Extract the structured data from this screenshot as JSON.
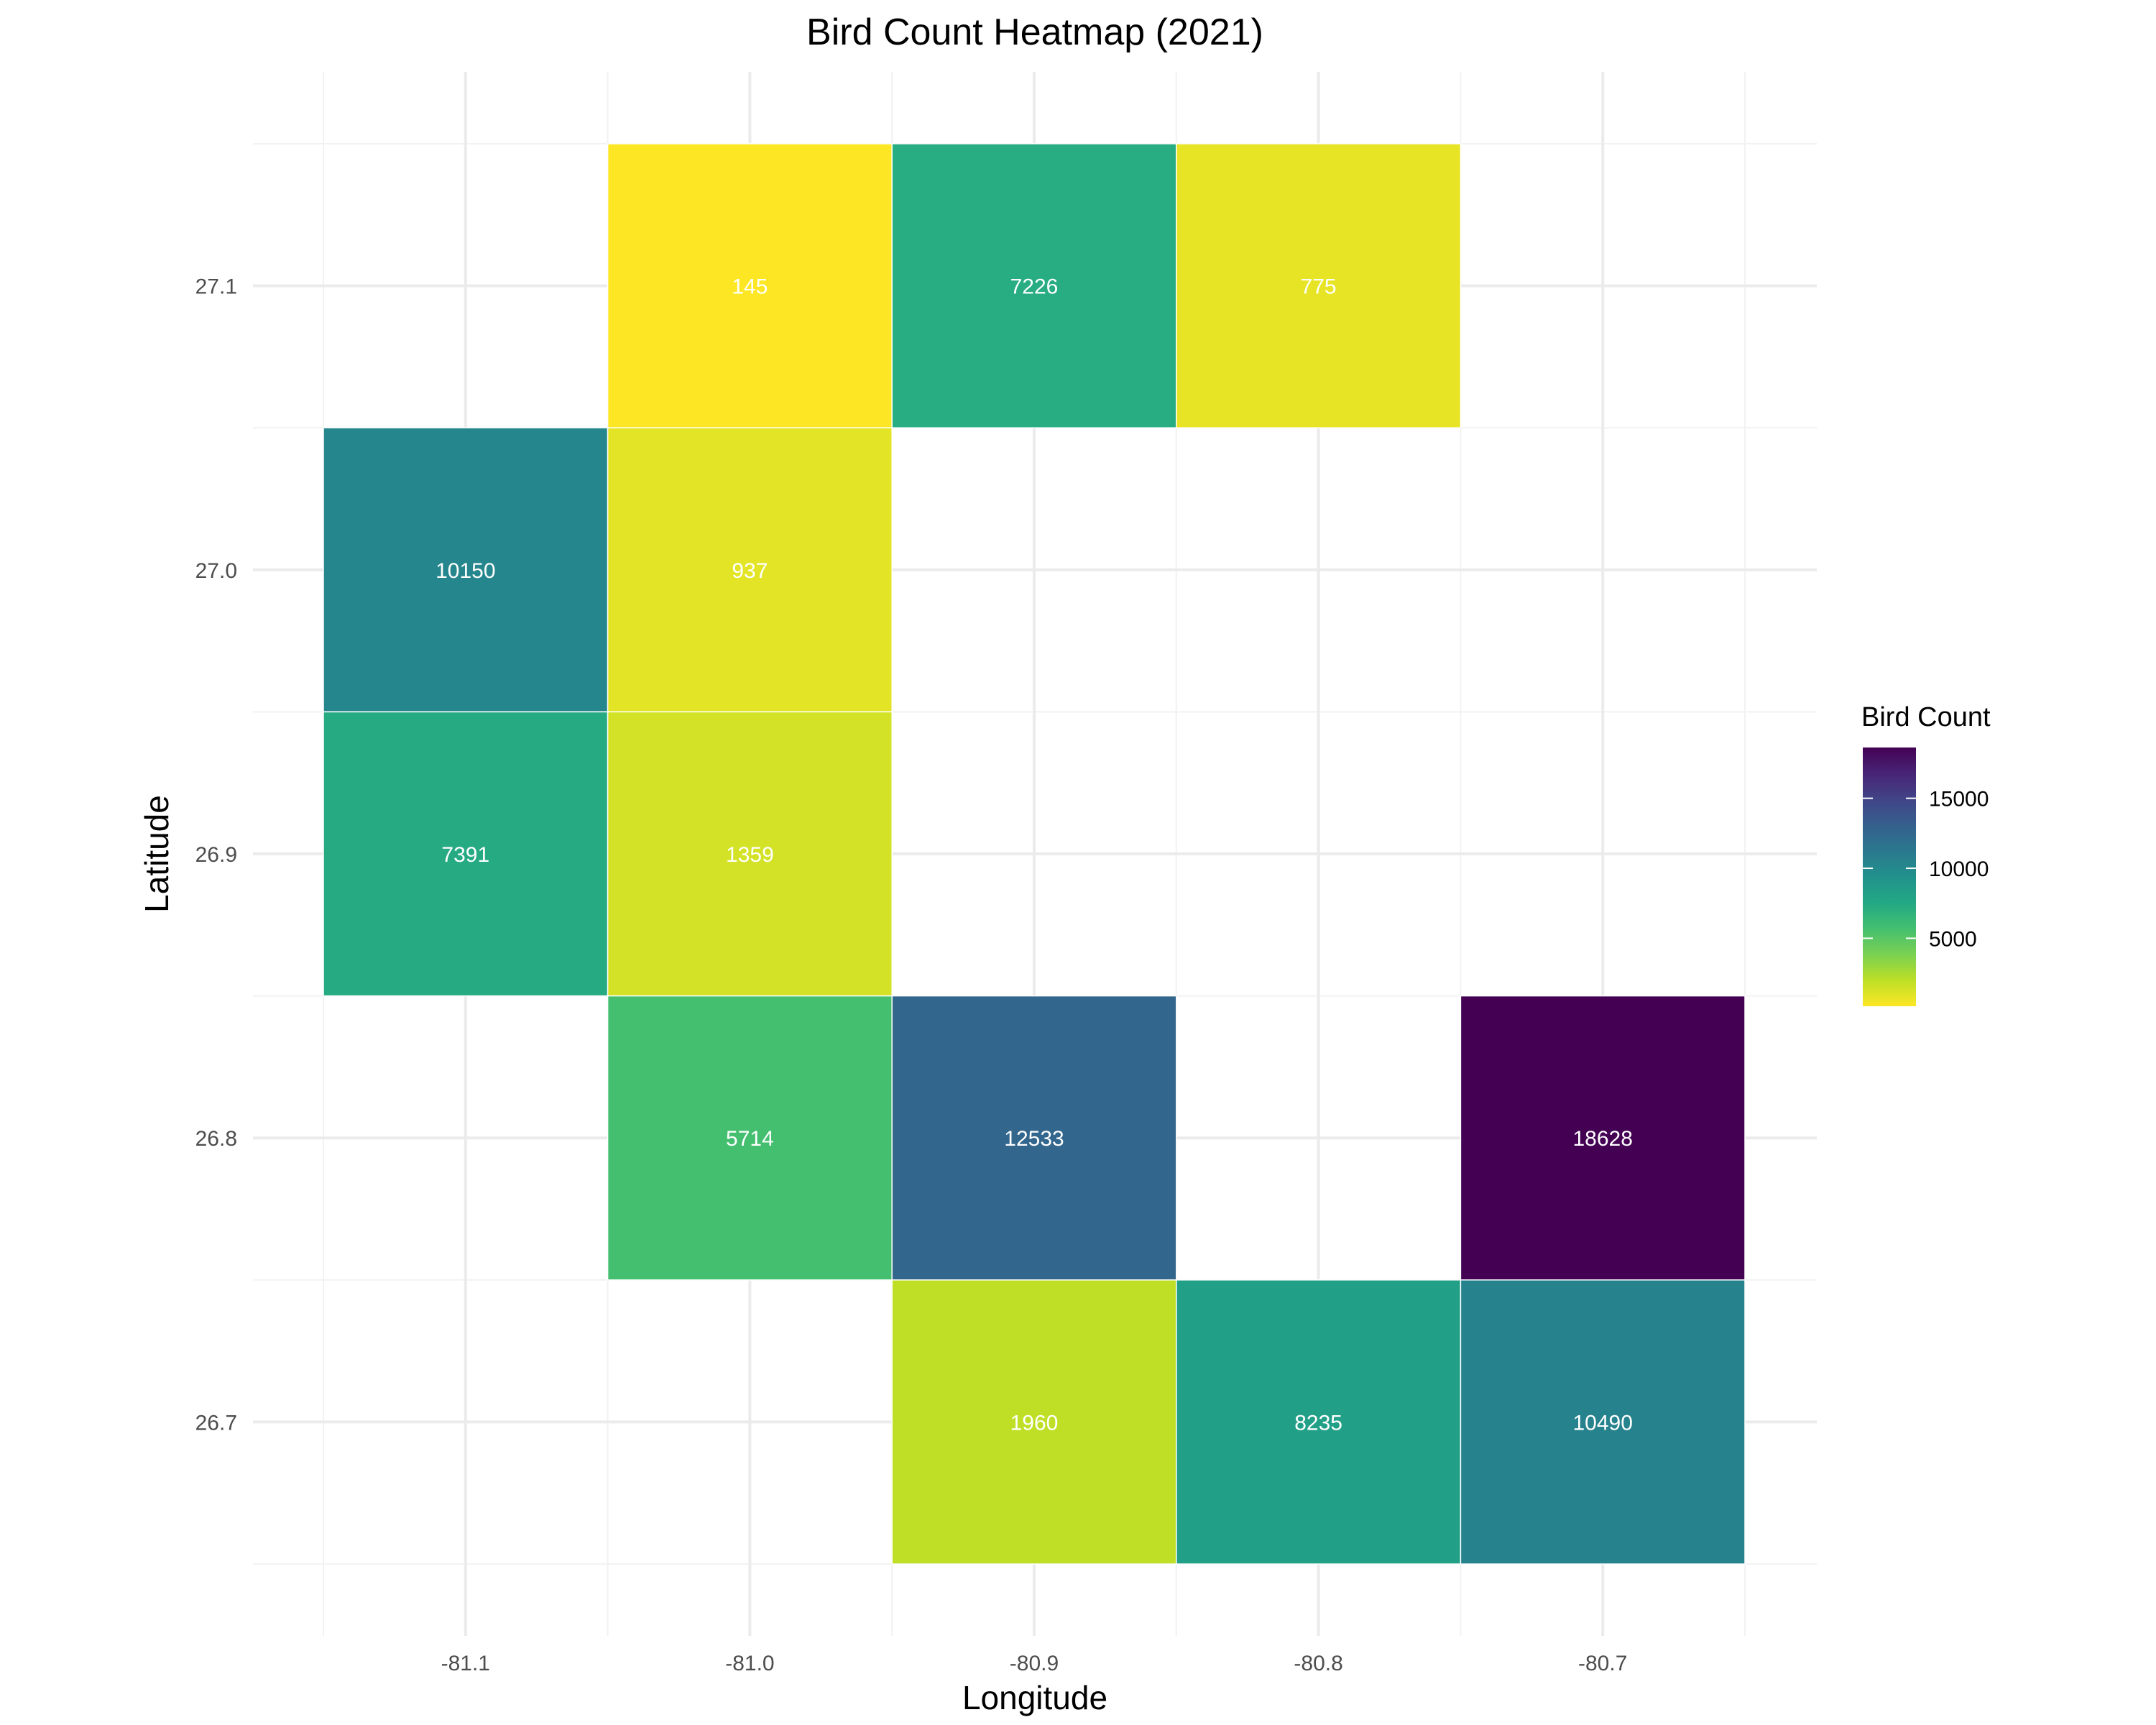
{
  "chart_data": {
    "type": "heatmap",
    "title": "Bird Count Heatmap (2021)",
    "xlabel": "Longitude",
    "ylabel": "Latitude",
    "x_ticks": [
      "-81.1",
      "-81.0",
      "-80.9",
      "-80.8",
      "-80.7"
    ],
    "y_ticks": [
      "27.1",
      "27.0",
      "26.9",
      "26.8",
      "26.7"
    ],
    "xlim": [
      -81.15,
      -80.65
    ],
    "ylim": [
      26.65,
      27.15
    ],
    "grid": true,
    "colorscale": "viridis (reversed)",
    "cells": [
      {
        "x": -81.0,
        "y": 27.1,
        "value": 145
      },
      {
        "x": -80.9,
        "y": 27.1,
        "value": 7226
      },
      {
        "x": -80.8,
        "y": 27.1,
        "value": 775
      },
      {
        "x": -81.1,
        "y": 27.0,
        "value": 10150
      },
      {
        "x": -81.0,
        "y": 27.0,
        "value": 937
      },
      {
        "x": -81.1,
        "y": 26.9,
        "value": 7391
      },
      {
        "x": -81.0,
        "y": 26.9,
        "value": 1359
      },
      {
        "x": -81.0,
        "y": 26.8,
        "value": 5714
      },
      {
        "x": -80.9,
        "y": 26.8,
        "value": 12533
      },
      {
        "x": -80.7,
        "y": 26.8,
        "value": 18628
      },
      {
        "x": -80.9,
        "y": 26.7,
        "value": 1960
      },
      {
        "x": -80.8,
        "y": 26.7,
        "value": 8235
      },
      {
        "x": -80.7,
        "y": 26.7,
        "value": 10490
      }
    ],
    "legend": {
      "title": "Bird Count",
      "placement": "right",
      "range": [
        145,
        18628
      ],
      "ticks": [
        {
          "value": 5000,
          "label": "5000"
        },
        {
          "value": 10000,
          "label": "10000"
        },
        {
          "value": 15000,
          "label": "15000"
        }
      ]
    }
  }
}
